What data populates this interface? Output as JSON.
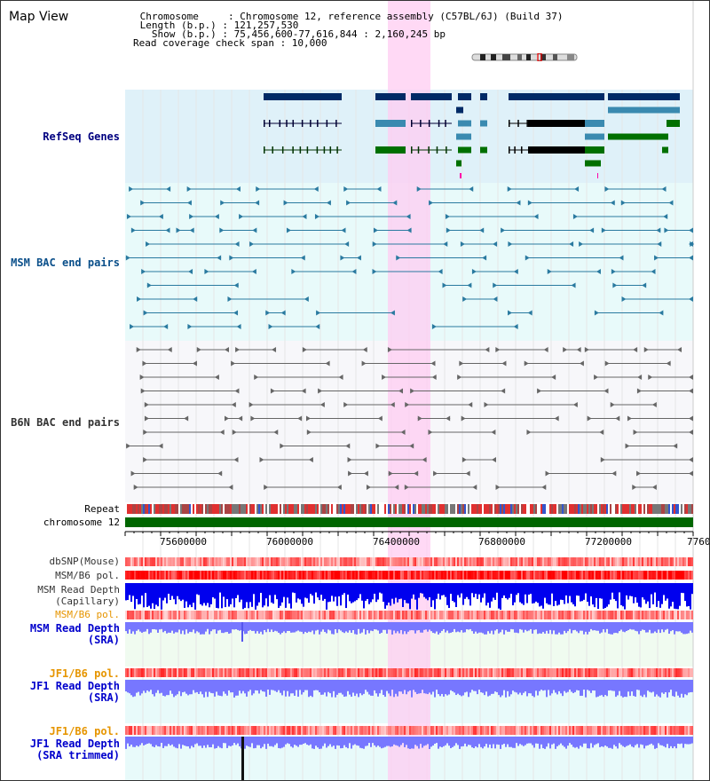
{
  "header": {
    "title": "Map View",
    "info_lines": [
      " Chromosome     : Chromosome 12, reference assembly (C57BL/6J) (Build 37)",
      " Length (b.p.) : 121,257,530",
      "   Show (b.p.) : 75,456,600-77,616,844 : 2,160,245 bp",
      "Read coverage check span : 10,000"
    ]
  },
  "tracks": {
    "refseq": "RefSeq Genes",
    "msm_bac": "MSM BAC end pairs",
    "b6n_bac": "B6N BAC end pairs",
    "repeat": "Repeat",
    "chromosome": "chromosome 12",
    "dbsnp": "dbSNP(Mouse)",
    "msm_b6_pol_1": "MSM/B6 pol.",
    "msm_read_depth_cap_1": "MSM Read Depth",
    "msm_read_depth_cap_2": "(Capillary)",
    "msm_b6_pol_2": "MSM/B6 pol.",
    "msm_read_depth_sra_1": "MSM Read Depth",
    "msm_read_depth_sra_2": "(SRA)",
    "jf1_b6_pol_1": "JF1/B6 pol.",
    "jf1_read_depth_1": "JF1 Read Depth",
    "jf1_read_depth_2": "(SRA)",
    "jf1_b6_pol_2": "JF1/B6 pol.",
    "jf1_read_depth_trim_1": "JF1 Read Depth",
    "jf1_read_depth_trim_2": "(SRA trimmed)"
  },
  "axis": {
    "ticks": [
      "75600000",
      "76000000",
      "76400000",
      "76800000",
      "77200000",
      "7760"
    ]
  },
  "colors": {
    "refseq_bg": "#dff1f9",
    "msm_bg": "#e8fafa",
    "b6n_bg": "#f7f7fa",
    "highlight": "#ffccf2",
    "navy_gene": "#002a66",
    "teal_gene": "#3a8ab0",
    "green_gene": "#007000",
    "chrom_bar": "#006600",
    "depth_dark_blue": "#0000ee",
    "depth_light_blue": "#7777ff"
  }
}
